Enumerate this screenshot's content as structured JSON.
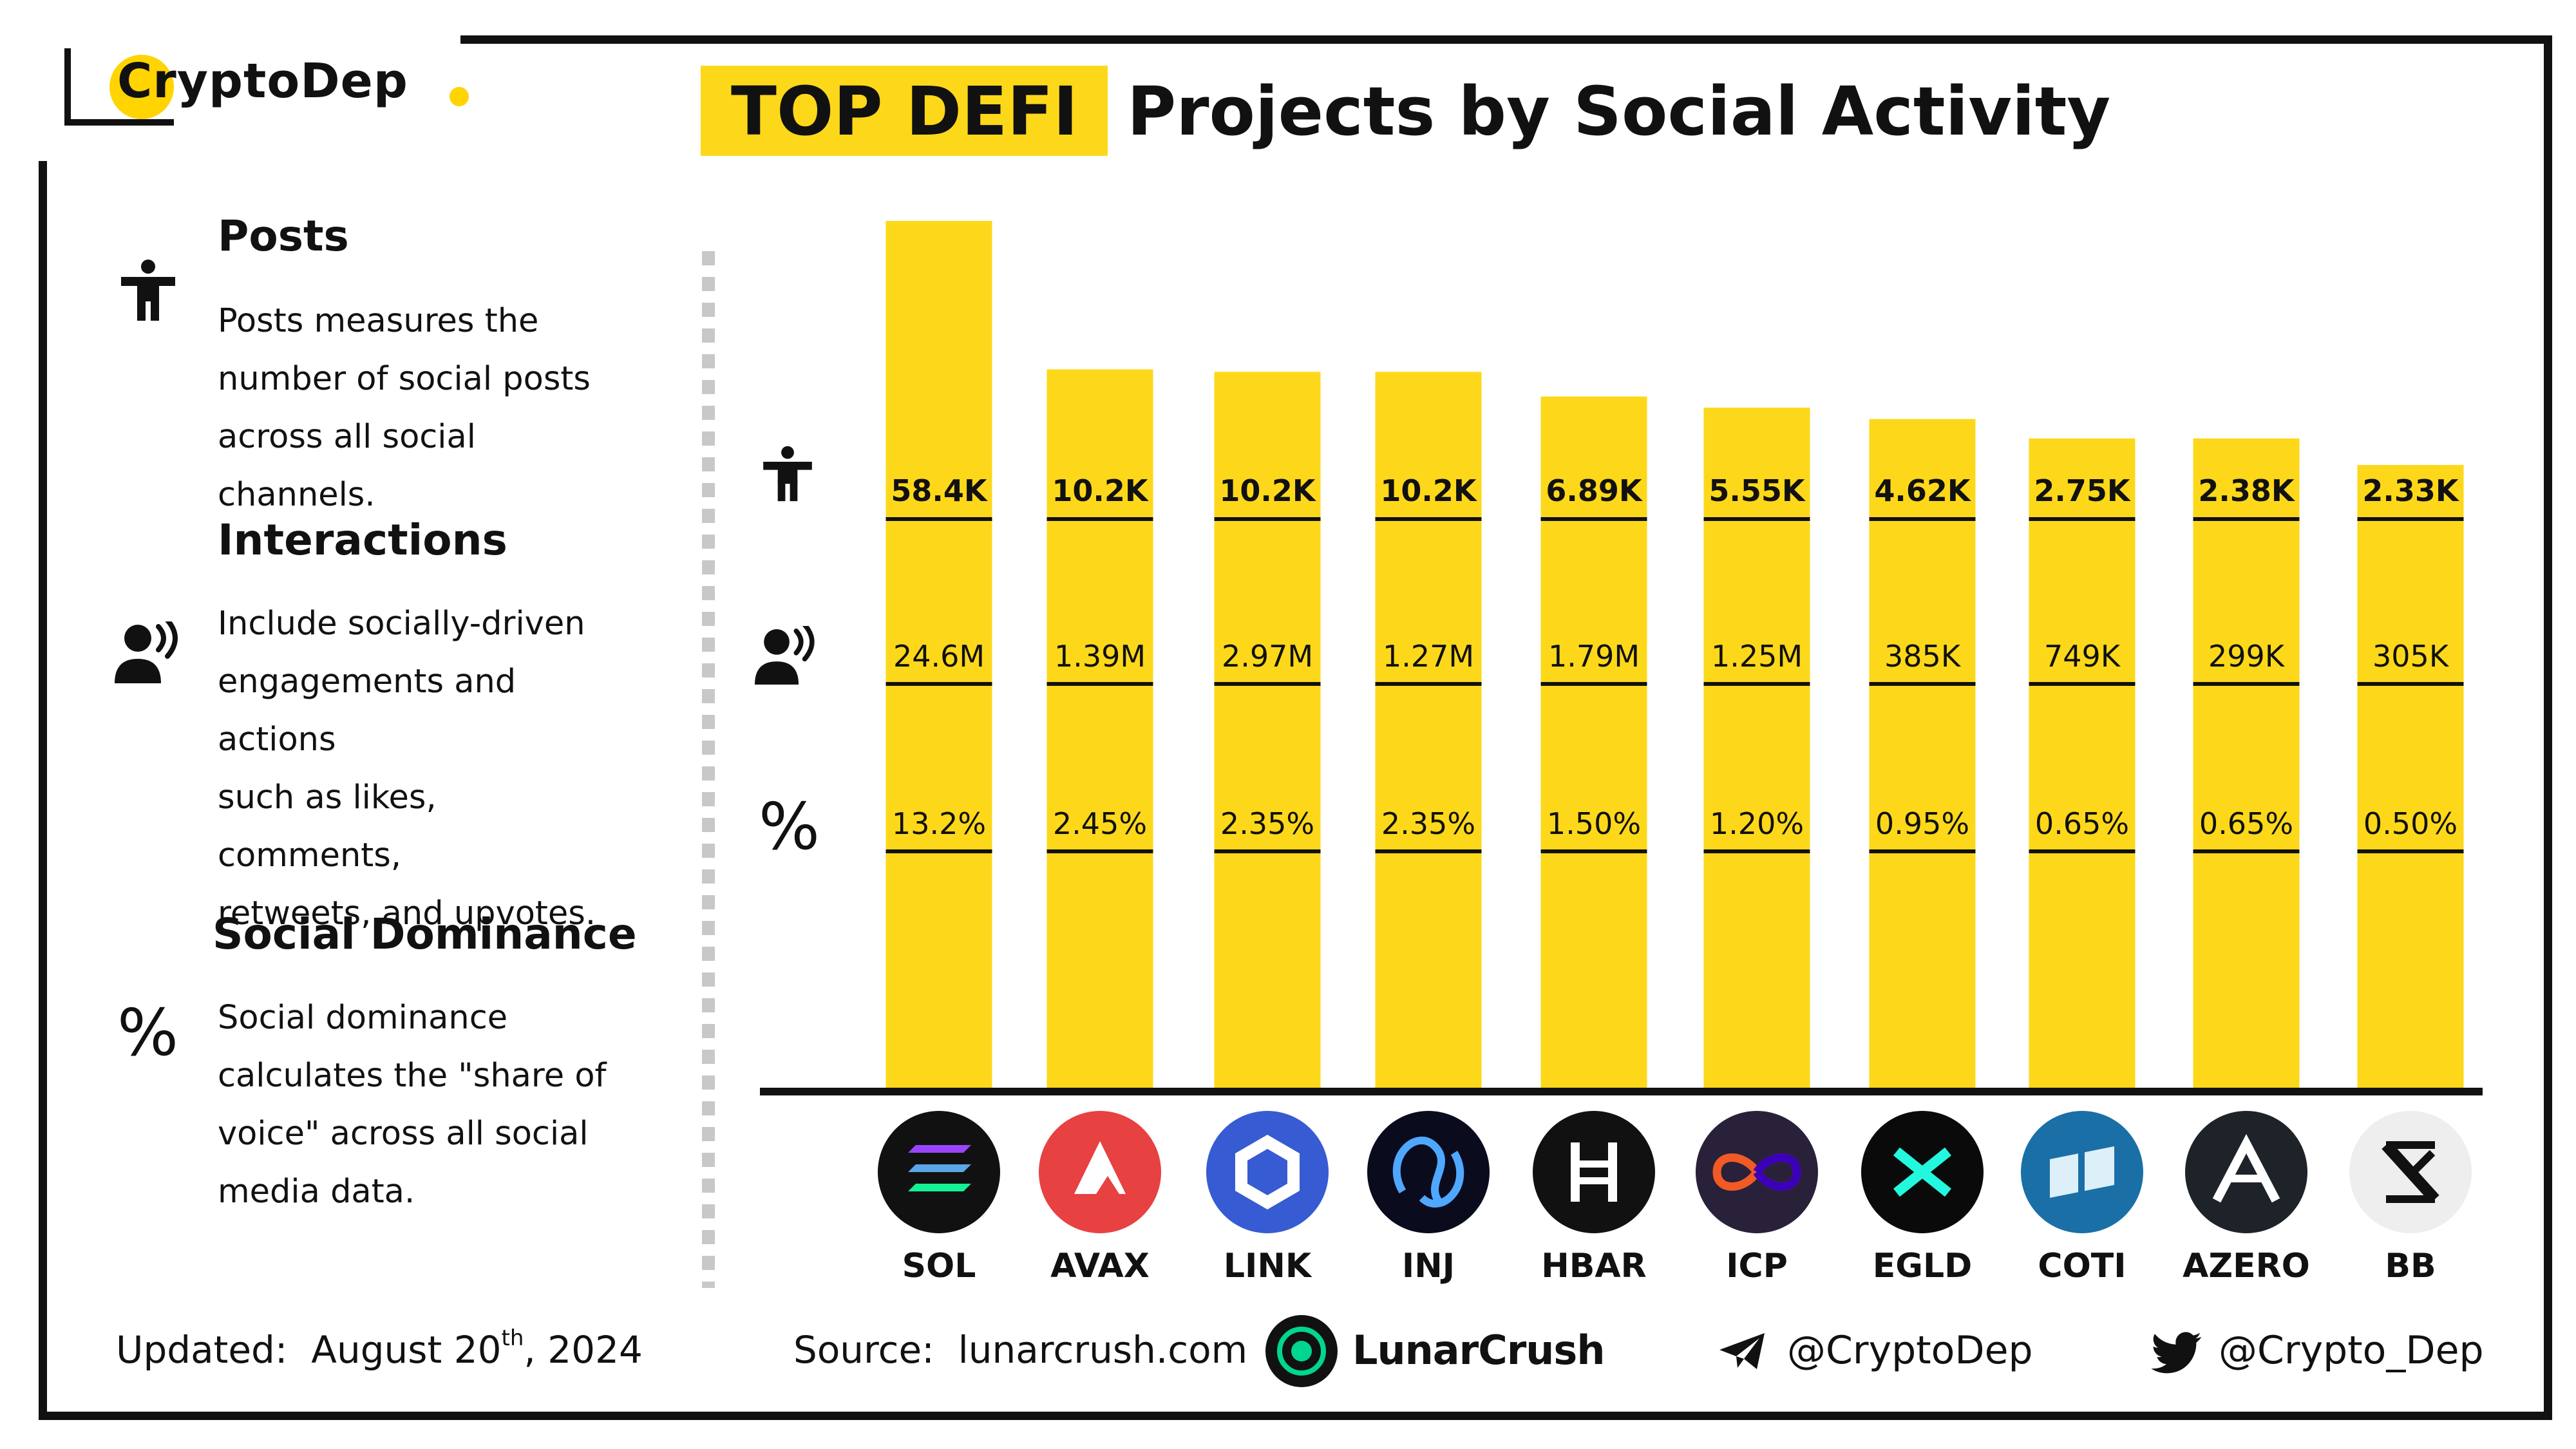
{
  "brand": {
    "name": "CryptoDep"
  },
  "title": {
    "highlight": "TOP DEFI",
    "rest": "Projects by Social Activity"
  },
  "legend": [
    {
      "title": "Posts",
      "lines": [
        "Posts measures the",
        "number of social posts",
        "across all social channels."
      ],
      "icon": "person-icon"
    },
    {
      "title": "Interactions",
      "lines": [
        "Include socially-driven",
        "engagements and actions",
        "such as likes, comments,",
        "retweets, and upvotes."
      ],
      "icon": "speaking-person-icon"
    },
    {
      "title": "Social Dominance",
      "lines": [
        "Social dominance",
        "calculates the \"share of",
        "voice\" across all social",
        "media data."
      ],
      "icon": "percent-icon"
    }
  ],
  "row_symbols": {
    "percent": "%"
  },
  "chart_data": {
    "type": "bar",
    "categories": [
      "SOL",
      "AVAX",
      "LINK",
      "INJ",
      "HBAR",
      "ICP",
      "EGLD",
      "COTI",
      "AZERO",
      "BB"
    ],
    "posts_labels": [
      "58.4K",
      "10.2K",
      "10.2K",
      "10.2K",
      "6.89K",
      "5.55K",
      "4.62K",
      "2.75K",
      "2.38K",
      "2.33K"
    ],
    "interactions_labels": [
      "24.6M",
      "1.39M",
      "2.97M",
      "1.27M",
      "1.79M",
      "1.25M",
      "385K",
      "749K",
      "299K",
      "305K"
    ],
    "dominance_labels": [
      "13.2%",
      "2.45%",
      "2.35%",
      "2.35%",
      "1.50%",
      "1.20%",
      "0.95%",
      "0.65%",
      "0.65%",
      "0.50%"
    ],
    "dominance_values": [
      13.2,
      2.45,
      2.35,
      2.35,
      1.5,
      1.2,
      0.95,
      0.65,
      0.65,
      0.5
    ],
    "bar_color": "#FDD81A",
    "coin_icons": [
      "sol-icon",
      "avax-icon",
      "link-icon",
      "inj-icon",
      "hbar-icon",
      "icp-icon",
      "egld-icon",
      "coti-icon",
      "azero-icon",
      "bb-icon"
    ],
    "coin_colors": [
      "#111111",
      "#E84142",
      "#375BD2",
      "#0B0B1E",
      "#111111",
      "#29203A",
      "#0A0A0A",
      "#1A6FA6",
      "#1E2329",
      "#EEEEEE"
    ]
  },
  "footer": {
    "updated_label": "Updated:",
    "updated_date": "August 20",
    "updated_suffix": "th",
    "updated_year": ", 2024",
    "source_label": "Source:",
    "source_value": "lunarcrush.com",
    "partner": "LunarCrush",
    "telegram": "@CryptoDep",
    "twitter": "@Crypto_Dep"
  }
}
